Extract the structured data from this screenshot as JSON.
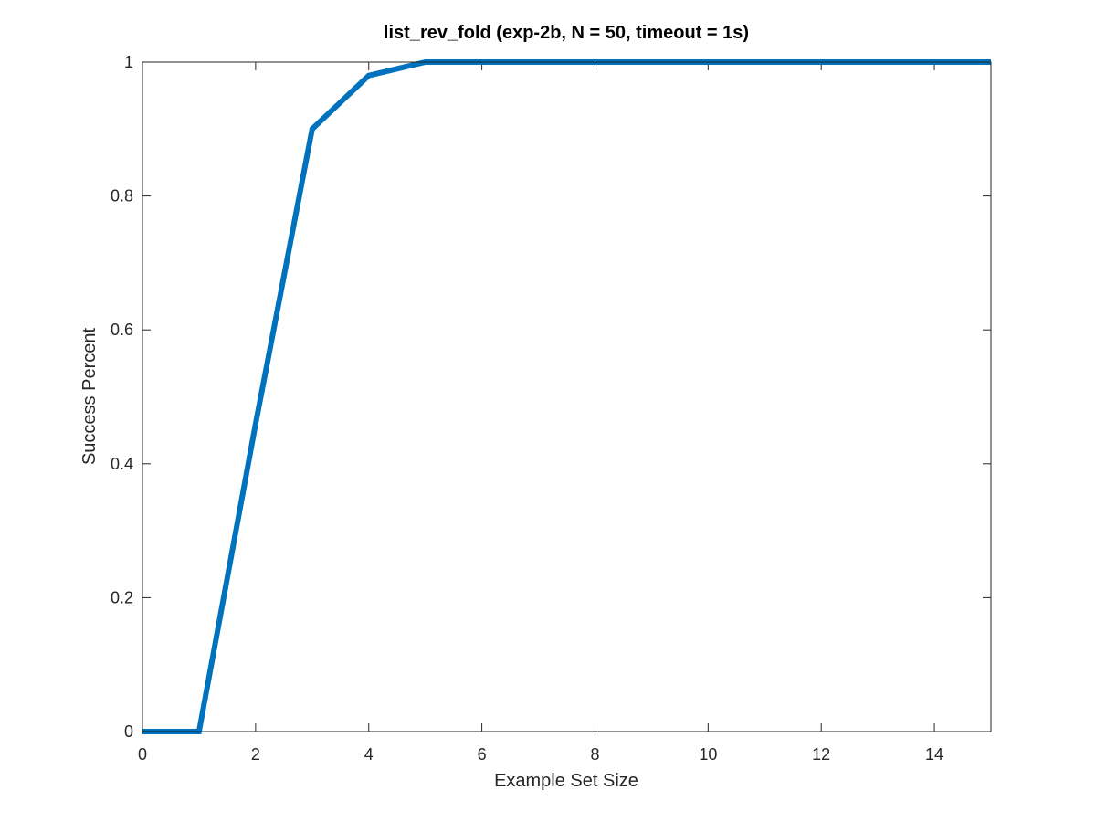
{
  "chart_data": {
    "type": "line",
    "title": "list_rev_fold (exp-2b, N = 50, timeout = 1s)",
    "xlabel": "Example Set Size",
    "ylabel": "Success Percent",
    "xlim": [
      0,
      15
    ],
    "ylim": [
      0,
      1
    ],
    "x_ticks": [
      0,
      2,
      4,
      6,
      8,
      10,
      12,
      14
    ],
    "y_ticks": [
      0,
      0.2,
      0.4,
      0.6,
      0.8,
      1
    ],
    "x_tick_labels": [
      "0",
      "2",
      "4",
      "6",
      "8",
      "10",
      "12",
      "14"
    ],
    "y_tick_labels": [
      "0",
      "0.2",
      "0.4",
      "0.6",
      "0.8",
      "1"
    ],
    "grid": false,
    "series": [
      {
        "color": "#0072BD",
        "x": [
          0,
          1,
          2,
          3,
          4,
          5,
          6,
          7,
          8,
          9,
          10,
          11,
          12,
          13,
          14,
          15
        ],
        "y": [
          0,
          0,
          0.46,
          0.9,
          0.98,
          1,
          1,
          1,
          1,
          1,
          1,
          1,
          1,
          1,
          1,
          1
        ]
      }
    ]
  }
}
